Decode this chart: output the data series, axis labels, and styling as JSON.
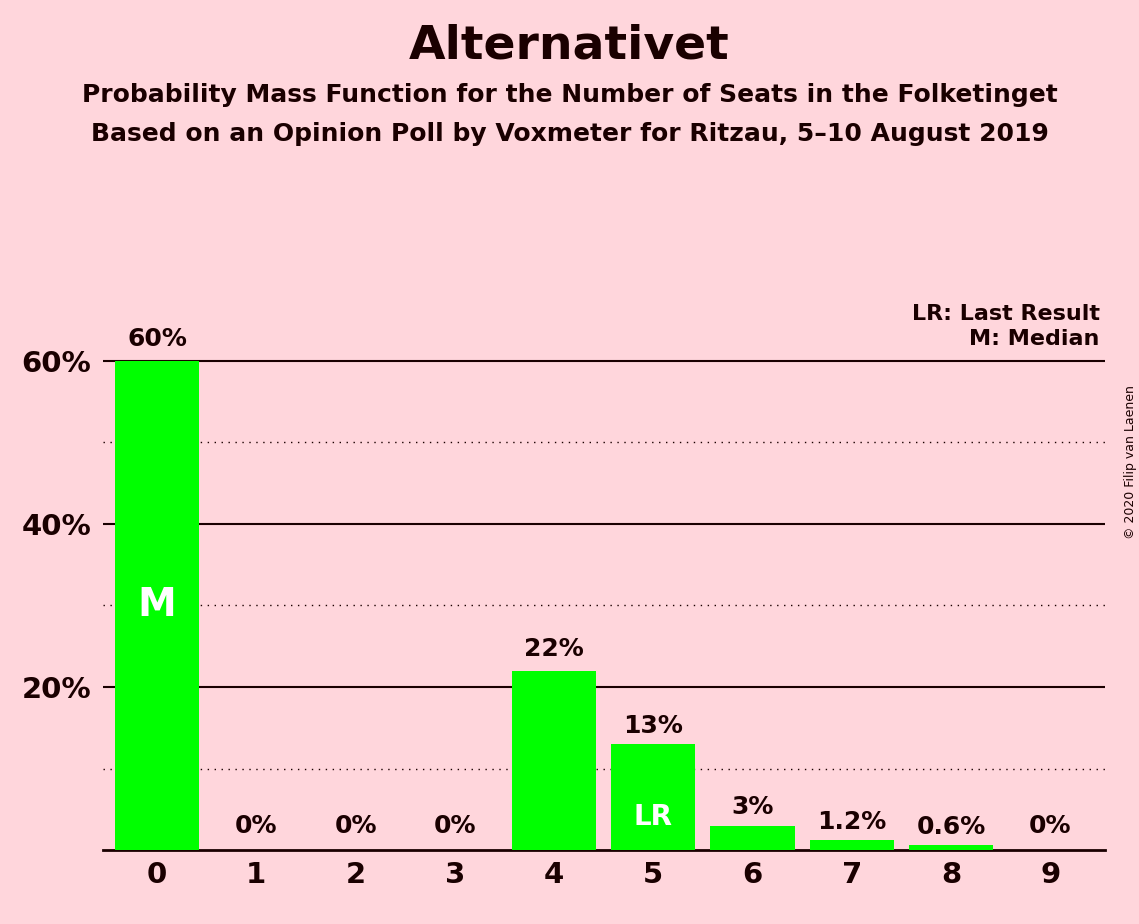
{
  "title": "Alternativet",
  "subtitle1": "Probability Mass Function for the Number of Seats in the Folketinget",
  "subtitle2": "Based on an Opinion Poll by Voxmeter for Ritzau, 5–10 August 2019",
  "copyright": "© 2020 Filip van Laenen",
  "categories": [
    0,
    1,
    2,
    3,
    4,
    5,
    6,
    7,
    8,
    9
  ],
  "values": [
    60.0,
    0.0,
    0.0,
    0.0,
    22.0,
    13.0,
    3.0,
    1.2,
    0.6,
    0.0
  ],
  "bar_labels": [
    "60%",
    "0%",
    "0%",
    "0%",
    "22%",
    "13%",
    "3%",
    "1.2%",
    "0.6%",
    "0%"
  ],
  "bar_color": "#00FF00",
  "background_color": "#FFD6DC",
  "text_color": "#1a0000",
  "title_fontsize": 34,
  "subtitle_fontsize": 18,
  "label_fontsize": 18,
  "tick_fontsize": 21,
  "ytick_labels": [
    "",
    "20%",
    "40%",
    "60%"
  ],
  "ytick_values": [
    0,
    20,
    40,
    60
  ],
  "ylim": [
    0,
    68
  ],
  "solid_lines": [
    20,
    40,
    60
  ],
  "dotted_lines": [
    10,
    30,
    50
  ],
  "median_bar": 0,
  "lr_bar": 5,
  "legend_lr": "LR: Last Result",
  "legend_m": "M: Median",
  "m_fontsize": 28,
  "lr_fontsize": 20,
  "legend_fontsize": 16,
  "copyright_fontsize": 9
}
